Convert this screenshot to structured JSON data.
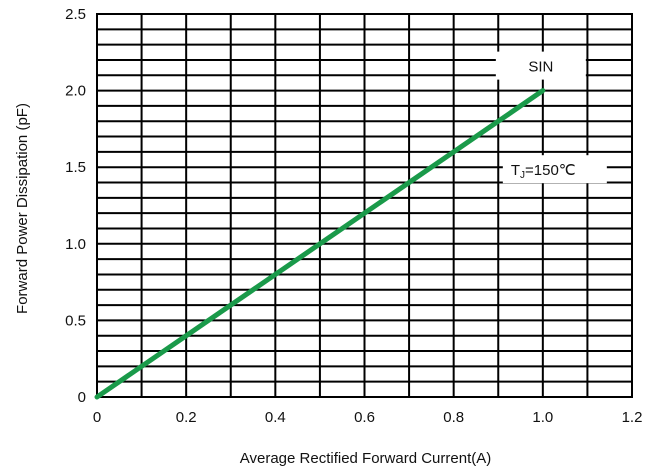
{
  "chart_data": {
    "type": "line",
    "title": "",
    "xlabel": "Average Rectified Forward Current(A)",
    "ylabel": "Forward Power Dissipation (pF)",
    "xlim": [
      0,
      1.2
    ],
    "ylim": [
      0,
      2.5
    ],
    "x_ticks": [
      "0",
      "0.2",
      "0.4",
      "0.6",
      "0.8",
      "1.0",
      "1.2"
    ],
    "y_ticks": [
      "0",
      "0.5",
      "1.0",
      "1.5",
      "2.0",
      "2.5"
    ],
    "grid": true,
    "series": [
      {
        "name": "SIN",
        "color": "#1a9a4a",
        "x": [
          0,
          1.0
        ],
        "y": [
          0,
          2.0
        ]
      }
    ],
    "annotations": [
      {
        "text": "SIN",
        "x": 1.0,
        "y": 2.15
      },
      {
        "text_main": "T",
        "text_sub": "J",
        "text_rest": "=150℃",
        "x": 1.0,
        "y": 1.5
      }
    ]
  }
}
